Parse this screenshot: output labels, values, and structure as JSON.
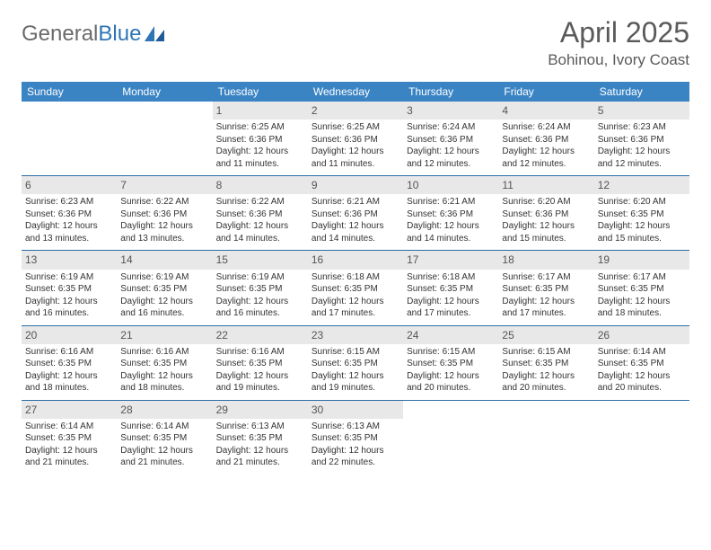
{
  "brand": {
    "part1": "General",
    "part2": "Blue"
  },
  "title": "April 2025",
  "location": "Bohinou, Ivory Coast",
  "colors": {
    "header_bg": "#3b84c4",
    "header_text": "#ffffff",
    "daynum_bg": "#e8e8e8",
    "border": "#2e6da4",
    "brand_gray": "#6a6a6a",
    "brand_blue": "#2e75b6"
  },
  "weekdays": [
    "Sunday",
    "Monday",
    "Tuesday",
    "Wednesday",
    "Thursday",
    "Friday",
    "Saturday"
  ],
  "weeks": [
    [
      {
        "n": "",
        "sr": "",
        "ss": "",
        "dl": "",
        "empty": true
      },
      {
        "n": "",
        "sr": "",
        "ss": "",
        "dl": "",
        "empty": true
      },
      {
        "n": "1",
        "sr": "Sunrise: 6:25 AM",
        "ss": "Sunset: 6:36 PM",
        "dl": "Daylight: 12 hours and 11 minutes."
      },
      {
        "n": "2",
        "sr": "Sunrise: 6:25 AM",
        "ss": "Sunset: 6:36 PM",
        "dl": "Daylight: 12 hours and 11 minutes."
      },
      {
        "n": "3",
        "sr": "Sunrise: 6:24 AM",
        "ss": "Sunset: 6:36 PM",
        "dl": "Daylight: 12 hours and 12 minutes."
      },
      {
        "n": "4",
        "sr": "Sunrise: 6:24 AM",
        "ss": "Sunset: 6:36 PM",
        "dl": "Daylight: 12 hours and 12 minutes."
      },
      {
        "n": "5",
        "sr": "Sunrise: 6:23 AM",
        "ss": "Sunset: 6:36 PM",
        "dl": "Daylight: 12 hours and 12 minutes."
      }
    ],
    [
      {
        "n": "6",
        "sr": "Sunrise: 6:23 AM",
        "ss": "Sunset: 6:36 PM",
        "dl": "Daylight: 12 hours and 13 minutes."
      },
      {
        "n": "7",
        "sr": "Sunrise: 6:22 AM",
        "ss": "Sunset: 6:36 PM",
        "dl": "Daylight: 12 hours and 13 minutes."
      },
      {
        "n": "8",
        "sr": "Sunrise: 6:22 AM",
        "ss": "Sunset: 6:36 PM",
        "dl": "Daylight: 12 hours and 14 minutes."
      },
      {
        "n": "9",
        "sr": "Sunrise: 6:21 AM",
        "ss": "Sunset: 6:36 PM",
        "dl": "Daylight: 12 hours and 14 minutes."
      },
      {
        "n": "10",
        "sr": "Sunrise: 6:21 AM",
        "ss": "Sunset: 6:36 PM",
        "dl": "Daylight: 12 hours and 14 minutes."
      },
      {
        "n": "11",
        "sr": "Sunrise: 6:20 AM",
        "ss": "Sunset: 6:36 PM",
        "dl": "Daylight: 12 hours and 15 minutes."
      },
      {
        "n": "12",
        "sr": "Sunrise: 6:20 AM",
        "ss": "Sunset: 6:35 PM",
        "dl": "Daylight: 12 hours and 15 minutes."
      }
    ],
    [
      {
        "n": "13",
        "sr": "Sunrise: 6:19 AM",
        "ss": "Sunset: 6:35 PM",
        "dl": "Daylight: 12 hours and 16 minutes."
      },
      {
        "n": "14",
        "sr": "Sunrise: 6:19 AM",
        "ss": "Sunset: 6:35 PM",
        "dl": "Daylight: 12 hours and 16 minutes."
      },
      {
        "n": "15",
        "sr": "Sunrise: 6:19 AM",
        "ss": "Sunset: 6:35 PM",
        "dl": "Daylight: 12 hours and 16 minutes."
      },
      {
        "n": "16",
        "sr": "Sunrise: 6:18 AM",
        "ss": "Sunset: 6:35 PM",
        "dl": "Daylight: 12 hours and 17 minutes."
      },
      {
        "n": "17",
        "sr": "Sunrise: 6:18 AM",
        "ss": "Sunset: 6:35 PM",
        "dl": "Daylight: 12 hours and 17 minutes."
      },
      {
        "n": "18",
        "sr": "Sunrise: 6:17 AM",
        "ss": "Sunset: 6:35 PM",
        "dl": "Daylight: 12 hours and 17 minutes."
      },
      {
        "n": "19",
        "sr": "Sunrise: 6:17 AM",
        "ss": "Sunset: 6:35 PM",
        "dl": "Daylight: 12 hours and 18 minutes."
      }
    ],
    [
      {
        "n": "20",
        "sr": "Sunrise: 6:16 AM",
        "ss": "Sunset: 6:35 PM",
        "dl": "Daylight: 12 hours and 18 minutes."
      },
      {
        "n": "21",
        "sr": "Sunrise: 6:16 AM",
        "ss": "Sunset: 6:35 PM",
        "dl": "Daylight: 12 hours and 18 minutes."
      },
      {
        "n": "22",
        "sr": "Sunrise: 6:16 AM",
        "ss": "Sunset: 6:35 PM",
        "dl": "Daylight: 12 hours and 19 minutes."
      },
      {
        "n": "23",
        "sr": "Sunrise: 6:15 AM",
        "ss": "Sunset: 6:35 PM",
        "dl": "Daylight: 12 hours and 19 minutes."
      },
      {
        "n": "24",
        "sr": "Sunrise: 6:15 AM",
        "ss": "Sunset: 6:35 PM",
        "dl": "Daylight: 12 hours and 20 minutes."
      },
      {
        "n": "25",
        "sr": "Sunrise: 6:15 AM",
        "ss": "Sunset: 6:35 PM",
        "dl": "Daylight: 12 hours and 20 minutes."
      },
      {
        "n": "26",
        "sr": "Sunrise: 6:14 AM",
        "ss": "Sunset: 6:35 PM",
        "dl": "Daylight: 12 hours and 20 minutes."
      }
    ],
    [
      {
        "n": "27",
        "sr": "Sunrise: 6:14 AM",
        "ss": "Sunset: 6:35 PM",
        "dl": "Daylight: 12 hours and 21 minutes."
      },
      {
        "n": "28",
        "sr": "Sunrise: 6:14 AM",
        "ss": "Sunset: 6:35 PM",
        "dl": "Daylight: 12 hours and 21 minutes."
      },
      {
        "n": "29",
        "sr": "Sunrise: 6:13 AM",
        "ss": "Sunset: 6:35 PM",
        "dl": "Daylight: 12 hours and 21 minutes."
      },
      {
        "n": "30",
        "sr": "Sunrise: 6:13 AM",
        "ss": "Sunset: 6:35 PM",
        "dl": "Daylight: 12 hours and 22 minutes."
      },
      {
        "n": "",
        "sr": "",
        "ss": "",
        "dl": "",
        "empty": true
      },
      {
        "n": "",
        "sr": "",
        "ss": "",
        "dl": "",
        "empty": true
      },
      {
        "n": "",
        "sr": "",
        "ss": "",
        "dl": "",
        "empty": true
      }
    ]
  ]
}
